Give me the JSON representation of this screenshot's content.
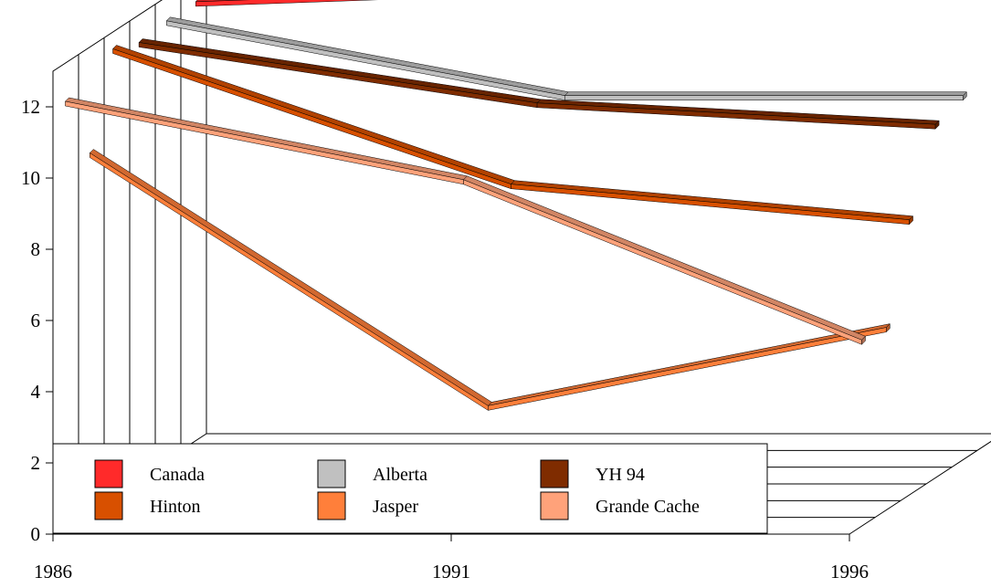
{
  "chart_data": {
    "type": "line",
    "style": "3d-ribbon",
    "title": "",
    "xlabel": "",
    "ylabel": "",
    "ylim": [
      0,
      13
    ],
    "yticks": [
      0,
      2,
      4,
      6,
      8,
      10,
      12
    ],
    "xticks": [
      "1986",
      "1991",
      "1996"
    ],
    "x": [
      1986,
      1991,
      1996
    ],
    "grid": true,
    "legend_position": "bottom",
    "series": [
      {
        "name": "Canada",
        "color": "#ff2a2a",
        "values": [
          12.2,
          12.6,
          12.8
        ]
      },
      {
        "name": "Alberta",
        "color": "#c0c0c0",
        "values": [
          12.2,
          10.1,
          10.1
        ]
      },
      {
        "name": "YH 94",
        "color": "#7f2c00",
        "values": [
          12.1,
          10.4,
          9.8
        ]
      },
      {
        "name": "Hinton",
        "color": "#d85000",
        "values": [
          12.4,
          8.6,
          7.6
        ]
      },
      {
        "name": "Jasper",
        "color": "#ff7f3a",
        "values": [
          9.9,
          2.8,
          5.0
        ]
      },
      {
        "name": "Grande Cache",
        "color": "#ffa27a",
        "values": [
          11.8,
          9.6,
          5.1
        ]
      }
    ]
  }
}
